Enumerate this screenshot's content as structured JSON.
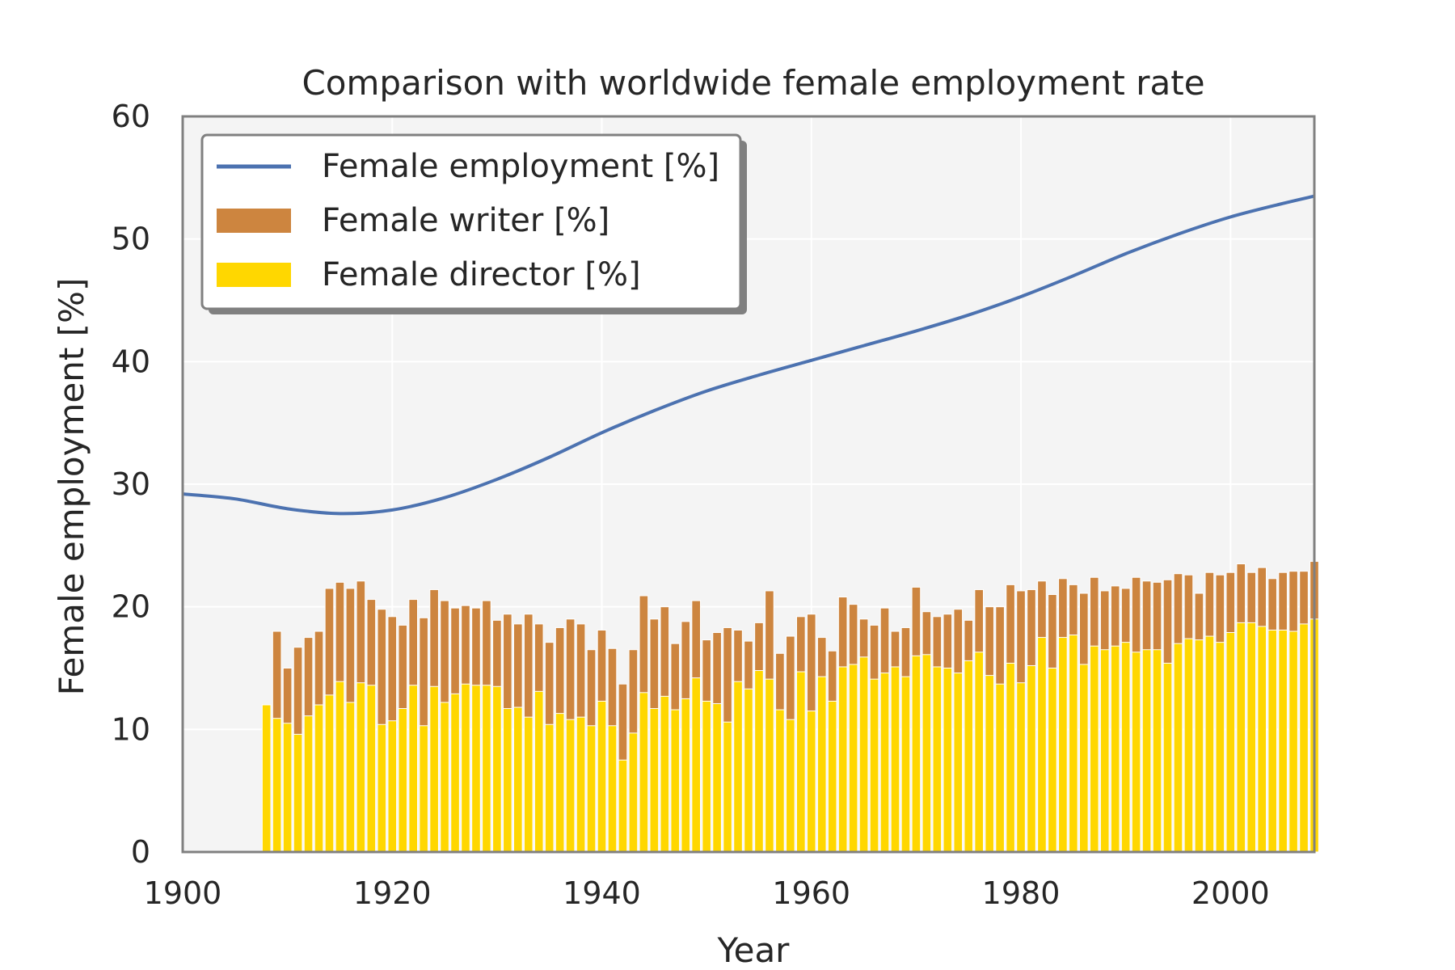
{
  "chart_data": {
    "type": "bar+line",
    "title": "Comparison with worldwide female employment rate",
    "xlabel": "Year",
    "ylabel": "Female employment [%]",
    "xlim": [
      1900,
      2008
    ],
    "ylim": [
      0,
      60
    ],
    "xticks": [
      1900,
      1920,
      1940,
      1960,
      1980,
      2000
    ],
    "yticks": [
      0,
      10,
      20,
      30,
      40,
      50,
      60
    ],
    "grid": true,
    "legend": {
      "placement": "upper-left",
      "entries": [
        {
          "label": "Female employment [%]",
          "kind": "line",
          "color": "#4c72b0"
        },
        {
          "label": "Female writer [%]",
          "kind": "bar",
          "color": "#cd853f"
        },
        {
          "label": "Female director [%]",
          "kind": "bar",
          "color": "#ffd700"
        }
      ]
    },
    "colors": {
      "employment": "#4c72b0",
      "writer": "#cd853f",
      "director": "#ffd700",
      "plot_background": "#f4f4f4",
      "grid": "#ffffff",
      "frame": "#808080"
    },
    "employment_line": {
      "name": "Female employment [%]",
      "x": [
        1900,
        1905,
        1910,
        1915,
        1920,
        1925,
        1930,
        1935,
        1940,
        1945,
        1950,
        1955,
        1960,
        1965,
        1970,
        1975,
        1980,
        1985,
        1990,
        1995,
        2000,
        2005,
        2008
      ],
      "y": [
        29.2,
        28.8,
        28.0,
        27.6,
        27.9,
        28.9,
        30.4,
        32.2,
        34.2,
        36.0,
        37.6,
        38.9,
        40.1,
        41.3,
        42.5,
        43.8,
        45.3,
        47.0,
        48.8,
        50.4,
        51.8,
        52.9,
        53.5
      ]
    },
    "bars": {
      "years": [
        1908,
        1909,
        1910,
        1911,
        1912,
        1913,
        1914,
        1915,
        1916,
        1917,
        1918,
        1919,
        1920,
        1921,
        1922,
        1923,
        1924,
        1925,
        1926,
        1927,
        1928,
        1929,
        1930,
        1931,
        1932,
        1933,
        1934,
        1935,
        1936,
        1937,
        1938,
        1939,
        1940,
        1941,
        1942,
        1943,
        1944,
        1945,
        1946,
        1947,
        1948,
        1949,
        1950,
        1951,
        1952,
        1953,
        1954,
        1955,
        1956,
        1957,
        1958,
        1959,
        1960,
        1961,
        1962,
        1963,
        1964,
        1965,
        1966,
        1967,
        1968,
        1969,
        1970,
        1971,
        1972,
        1973,
        1974,
        1975,
        1976,
        1977,
        1978,
        1979,
        1980,
        1981,
        1982,
        1983,
        1984,
        1985,
        1986,
        1987,
        1988,
        1989,
        1990,
        1991,
        1992,
        1993,
        1994,
        1995,
        1996,
        1997,
        1998,
        1999,
        2000,
        2001,
        2002,
        2003,
        2004,
        2005,
        2006,
        2007,
        2008
      ],
      "writer": [
        0,
        18,
        15,
        16.7,
        17.5,
        18,
        21.5,
        22,
        21.5,
        22.1,
        20.6,
        19.8,
        19.2,
        18.5,
        20.6,
        19.1,
        21.4,
        20.5,
        19.9,
        20.1,
        19.9,
        20.5,
        18.9,
        19.4,
        18.6,
        19.4,
        18.6,
        17.1,
        18.3,
        19,
        18.6,
        16.5,
        18.1,
        16.6,
        13.7,
        16.5,
        20.9,
        19,
        20,
        17,
        18.8,
        20.5,
        17.3,
        17.9,
        18.3,
        18.1,
        17.2,
        18.7,
        21.3,
        16.2,
        17.6,
        19.2,
        19.4,
        17.5,
        16.4,
        20.8,
        20.2,
        19,
        18.5,
        19.9,
        18,
        18.3,
        21.6,
        19.6,
        19.2,
        19.4,
        19.8,
        18.9,
        21.4,
        20,
        20,
        21.8,
        21.3,
        21.4,
        22.1,
        21,
        22.3,
        21.8,
        21.1,
        22.4,
        21.3,
        21.7,
        21.5,
        22.4,
        22.1,
        22,
        22.2,
        22.7,
        22.6,
        21.1,
        22.8,
        22.6,
        22.8,
        23.5,
        22.8,
        23.2,
        22.3,
        22.8,
        22.9,
        22.9,
        23.7
      ],
      "director": [
        12,
        10.9,
        10.5,
        9.6,
        11.1,
        12,
        12.8,
        13.9,
        12.2,
        13.8,
        13.6,
        10.4,
        10.7,
        11.7,
        13.6,
        10.3,
        13.5,
        12.2,
        12.9,
        13.7,
        13.6,
        13.6,
        13.5,
        11.7,
        11.8,
        11,
        13.1,
        10.4,
        11.3,
        10.8,
        11,
        10.3,
        12.3,
        10.3,
        7.5,
        9.7,
        13,
        11.7,
        12.7,
        11.6,
        12.5,
        14.2,
        12.3,
        12.1,
        10.6,
        13.9,
        13.3,
        14.8,
        14.1,
        11.6,
        10.8,
        14.7,
        11.5,
        14.3,
        12.3,
        15.1,
        15.3,
        15.9,
        14.1,
        14.6,
        15.1,
        14.3,
        16,
        16.1,
        15.1,
        15,
        14.6,
        15.6,
        16.3,
        14.4,
        13.7,
        15.4,
        13.8,
        15.2,
        17.5,
        15,
        17.5,
        17.7,
        15.3,
        16.8,
        16.5,
        16.8,
        17.1,
        16.3,
        16.5,
        16.5,
        15.4,
        17,
        17.4,
        17.3,
        17.6,
        17.1,
        17.9,
        18.7,
        18.7,
        18.4,
        18.1,
        18.1,
        18,
        18.6,
        19
      ]
    }
  }
}
